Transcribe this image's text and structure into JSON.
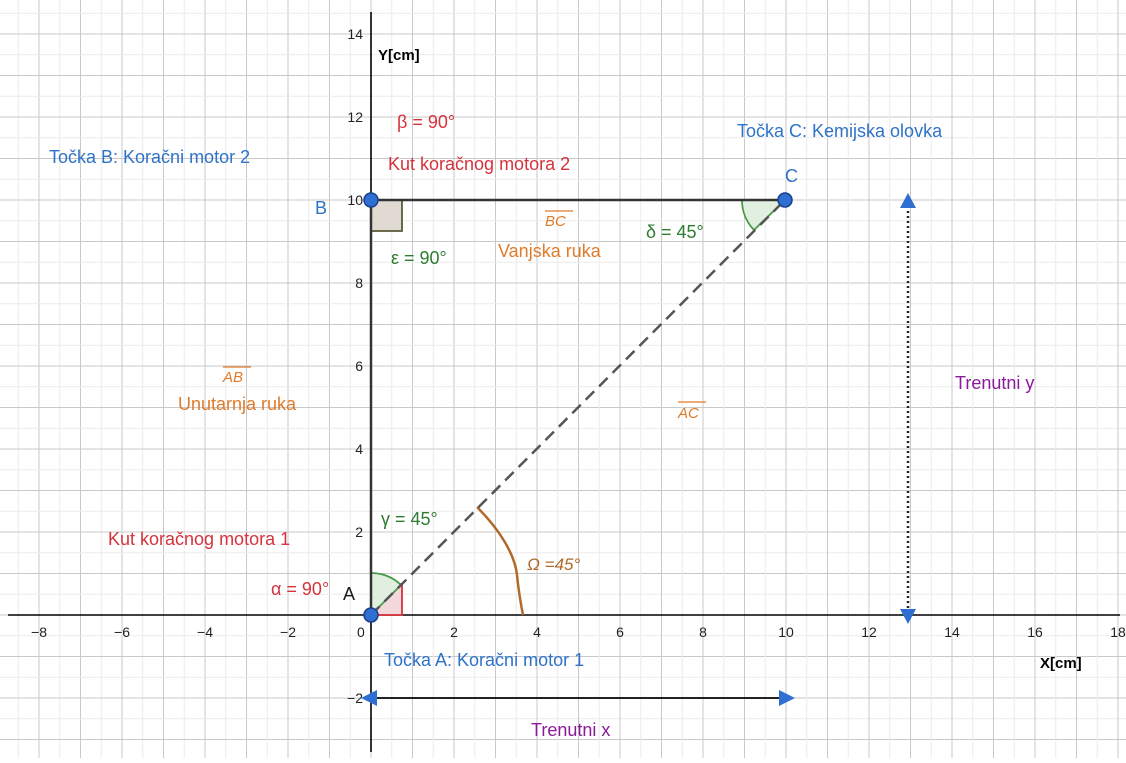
{
  "axes": {
    "x_title": "X[cm]",
    "y_title": "Y[cm]",
    "x_ticks": [
      "−8",
      "−6",
      "−4",
      "−2",
      "0",
      "2",
      "4",
      "6",
      "8",
      "10",
      "12",
      "14",
      "16",
      "18"
    ],
    "y_ticks": [
      "−2",
      "2",
      "4",
      "6",
      "8",
      "10",
      "12",
      "14"
    ]
  },
  "points": {
    "A": {
      "name": "A",
      "x": 0,
      "y": 0
    },
    "B": {
      "name": "B",
      "x": 0,
      "y": 10
    },
    "C": {
      "name": "C",
      "x": 10,
      "y": 10
    }
  },
  "labels": {
    "point_a": "Točka A: Koračni motor 1",
    "point_b": "Točka B: Koračni motor 2",
    "point_c": "Točka C: Kemijska olovka",
    "motor1_angle": "Kut koračnog motora 1",
    "motor2_angle": "Kut koračnog motora 2",
    "alpha": "α = 90°",
    "beta": "β = 90°",
    "gamma": "γ = 45°",
    "delta": "δ = 45°",
    "epsilon": "ε = 90°",
    "omega": "Ω =45°",
    "seg_ab": "AB",
    "seg_bc": "BC",
    "seg_ac": "AC",
    "inner_arm": "Unutarnja ruka",
    "outer_arm": "Vanjska ruka",
    "current_x": "Trenutni x",
    "current_y": "Trenutni y"
  },
  "colors": {
    "blue_text": "#2e73c8",
    "red_text": "#d6323c",
    "green_text": "#2e7d32",
    "orange_text": "#e07b2a",
    "purple_text": "#8b1a9b",
    "arrow_blue": "#2f6fd1",
    "point_fill": "#2f6fd1",
    "segment": "#333333",
    "omega_arc": "#b06a2c"
  }
}
